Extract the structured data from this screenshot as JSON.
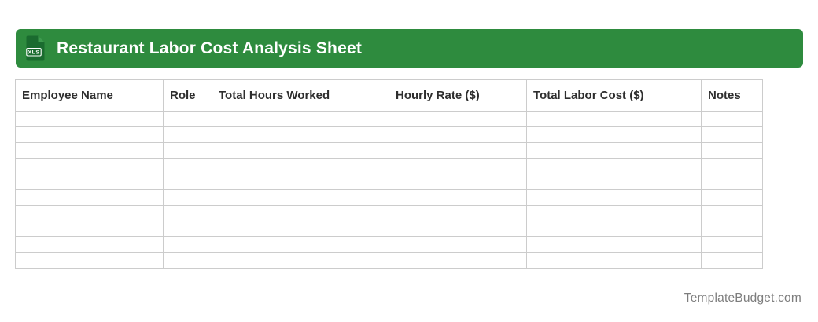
{
  "banner": {
    "title": "Restaurant Labor Cost Analysis Sheet",
    "icon_label": "XLS"
  },
  "table": {
    "columns": [
      {
        "label": "Employee Name"
      },
      {
        "label": "Role"
      },
      {
        "label": "Total Hours Worked"
      },
      {
        "label": "Hourly Rate ($)"
      },
      {
        "label": "Total Labor Cost ($)"
      },
      {
        "label": "Notes"
      }
    ],
    "rows": [
      [
        "",
        "",
        "",
        "",
        "",
        ""
      ],
      [
        "",
        "",
        "",
        "",
        "",
        ""
      ],
      [
        "",
        "",
        "",
        "",
        "",
        ""
      ],
      [
        "",
        "",
        "",
        "",
        "",
        ""
      ],
      [
        "",
        "",
        "",
        "",
        "",
        ""
      ],
      [
        "",
        "",
        "",
        "",
        "",
        ""
      ],
      [
        "",
        "",
        "",
        "",
        "",
        ""
      ],
      [
        "",
        "",
        "",
        "",
        "",
        ""
      ],
      [
        "",
        "",
        "",
        "",
        "",
        ""
      ],
      [
        "",
        "",
        "",
        "",
        "",
        ""
      ]
    ]
  },
  "footer": {
    "watermark": "TemplateBudget.com"
  },
  "colors": {
    "banner_bg": "#2e8b3e",
    "icon_document": "#1a6b2f",
    "icon_fold": "#3d9a4e",
    "grid_line": "#cccccc",
    "header_text": "#2e2e2e",
    "watermark_text": "#7d7d7d"
  }
}
